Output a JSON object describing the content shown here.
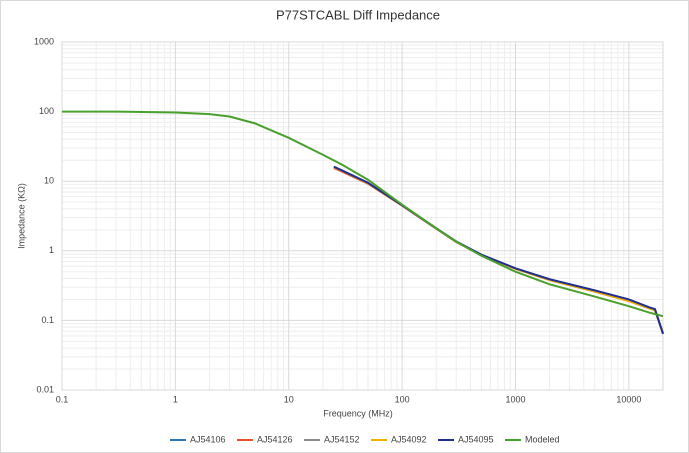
{
  "chart_data": {
    "type": "line",
    "title": "P77STCABL Diff Impedance",
    "x_label": "Frequency (MHz)",
    "y_label": "Impedance (KΩ)",
    "xlog": true,
    "ylog": true,
    "grid": true,
    "minor_grid": true,
    "legend": "bottom",
    "xlim": [
      0.1,
      20000
    ],
    "xticks": [
      0.1,
      1,
      10,
      100,
      1000,
      10000
    ],
    "ylim": [
      0.01,
      1000
    ],
    "yticks": [
      0.01,
      0.1,
      1,
      10,
      100,
      1000
    ],
    "series": [
      {
        "name": "AJ54106",
        "color": "#2e75b6",
        "x": [
          25,
          30,
          50,
          100,
          200,
          300,
          500,
          1000,
          2000,
          5000,
          10000,
          15000,
          17000,
          20000
        ],
        "values": [
          16,
          14,
          9.4,
          4.5,
          2.1,
          1.35,
          0.87,
          0.55,
          0.38,
          0.26,
          0.19,
          0.15,
          0.14,
          0.066
        ]
      },
      {
        "name": "AJ54126",
        "color": "#e8502a",
        "x": [
          25,
          30,
          50,
          100,
          200,
          300,
          500,
          1000,
          2000,
          5000,
          10000,
          15000,
          17000,
          20000
        ],
        "values": [
          15.5,
          13.6,
          9.2,
          4.45,
          2.08,
          1.34,
          0.87,
          0.55,
          0.38,
          0.26,
          0.19,
          0.15,
          0.14,
          0.065
        ]
      },
      {
        "name": "AJ54152",
        "color": "#8c8c8c",
        "x": [
          25,
          30,
          50,
          100,
          200,
          300,
          500,
          1000,
          2000,
          5000,
          10000,
          15000,
          17000,
          20000
        ],
        "values": [
          16,
          14,
          9.4,
          4.5,
          2.1,
          1.35,
          0.87,
          0.55,
          0.38,
          0.26,
          0.19,
          0.15,
          0.14,
          0.066
        ]
      },
      {
        "name": "AJ54092",
        "color": "#f4b000",
        "x": [
          25,
          30,
          50,
          100,
          200,
          300,
          500,
          1000,
          2000,
          5000,
          10000,
          15000,
          17000,
          20000
        ],
        "values": [
          16,
          14,
          9.4,
          4.5,
          2.1,
          1.35,
          0.87,
          0.55,
          0.38,
          0.26,
          0.19,
          0.15,
          0.14,
          0.066
        ]
      },
      {
        "name": "AJ54095",
        "color": "#1f2e8f",
        "x": [
          25,
          30,
          50,
          100,
          200,
          300,
          500,
          1000,
          2000,
          5000,
          10000,
          15000,
          17000,
          20000
        ],
        "values": [
          16.2,
          14.1,
          9.5,
          4.5,
          2.1,
          1.36,
          0.88,
          0.56,
          0.39,
          0.27,
          0.2,
          0.155,
          0.145,
          0.064
        ]
      },
      {
        "name": "Modeled",
        "color": "#4aa02c",
        "x": [
          0.1,
          0.3,
          1,
          2,
          3,
          5,
          10,
          20,
          30,
          50,
          100,
          200,
          300,
          500,
          1000,
          2000,
          5000,
          10000,
          15000,
          20000
        ],
        "values": [
          100,
          100,
          97,
          92,
          85,
          68,
          42,
          24,
          17,
          10.5,
          4.6,
          2.1,
          1.35,
          0.85,
          0.5,
          0.33,
          0.22,
          0.16,
          0.13,
          0.115
        ]
      }
    ]
  }
}
